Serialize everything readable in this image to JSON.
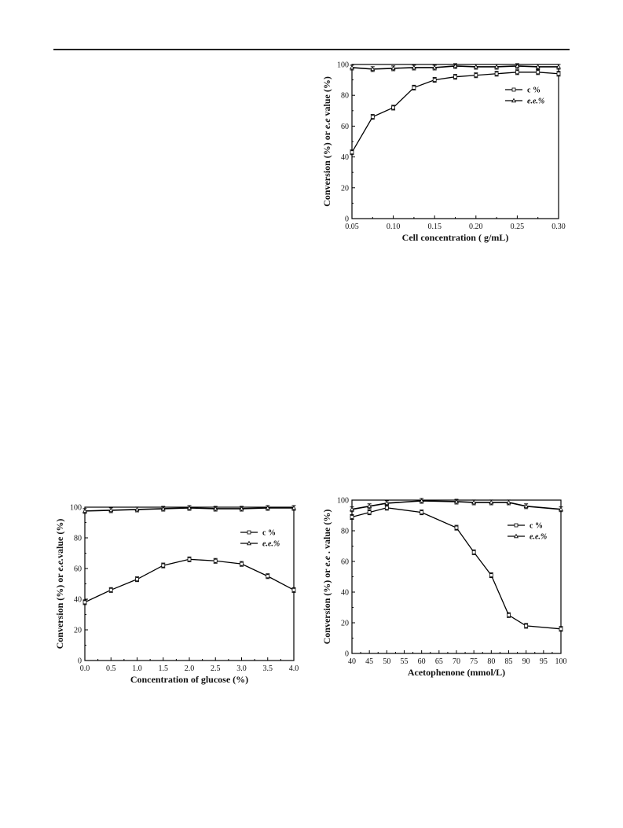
{
  "chart_data": [
    {
      "type": "line",
      "xlabel": "Cell concentration ( g/mL)",
      "ylabel_parts": [
        "Conversion (%) or ",
        "e.e",
        " value (%)"
      ],
      "xlim": [
        0.05,
        0.3
      ],
      "ylim": [
        0,
        100
      ],
      "xticks": [
        "0.05",
        "0.10",
        "0.15",
        "0.20",
        "0.25",
        "0.30"
      ],
      "xtick_values": [
        0.05,
        0.1,
        0.15,
        0.2,
        0.25,
        0.3
      ],
      "yticks": [
        "0",
        "20",
        "40",
        "60",
        "80",
        "100"
      ],
      "ytick_values": [
        0,
        20,
        40,
        60,
        80,
        100
      ],
      "legend_position": "top-right",
      "legend": [
        {
          "prefix": "",
          "label": "c %",
          "italic": false
        },
        {
          "prefix": "",
          "label": "e.e.%",
          "italic": true
        }
      ],
      "series": [
        {
          "name": "c %",
          "marker": "square",
          "x": [
            0.05,
            0.075,
            0.1,
            0.125,
            0.15,
            0.175,
            0.2,
            0.225,
            0.25,
            0.275,
            0.3
          ],
          "values": [
            43,
            66,
            72,
            85,
            90,
            92,
            93,
            94,
            95,
            95,
            94
          ]
        },
        {
          "name": "e.e.%",
          "marker": "triangle",
          "x": [
            0.05,
            0.075,
            0.1,
            0.125,
            0.15,
            0.175,
            0.2,
            0.225,
            0.25,
            0.275,
            0.3
          ],
          "values": [
            98,
            97,
            97.5,
            98,
            98,
            99,
            98.5,
            98.5,
            99,
            98.5,
            98.5
          ]
        }
      ]
    },
    {
      "type": "line",
      "xlabel": "Concentration of glucose (%)",
      "ylabel_parts": [
        "Conversion (%) or ",
        "e.e.",
        "value (%)"
      ],
      "xlim": [
        0.0,
        4.0
      ],
      "ylim": [
        0,
        100
      ],
      "xticks": [
        "0.0",
        "0.5",
        "1.0",
        "1.5",
        "2.0",
        "2.5",
        "3.0",
        "3.5",
        "4.0"
      ],
      "xtick_values": [
        0.0,
        0.5,
        1.0,
        1.5,
        2.0,
        2.5,
        3.0,
        3.5,
        4.0
      ],
      "yticks": [
        "0",
        "20",
        "40",
        "60",
        "80",
        "100"
      ],
      "ytick_values": [
        0,
        20,
        40,
        60,
        80,
        100
      ],
      "legend_position": "top-right",
      "legend": [
        {
          "prefix": "",
          "label": "c %",
          "italic": false
        },
        {
          "prefix": "",
          "label": "e.e.%",
          "italic": true
        }
      ],
      "series": [
        {
          "name": "c %",
          "marker": "square",
          "x": [
            0.0,
            0.5,
            1.0,
            1.5,
            2.0,
            2.5,
            3.0,
            3.5,
            4.0
          ],
          "values": [
            38,
            46,
            53,
            62,
            66,
            65,
            63,
            55,
            46
          ]
        },
        {
          "name": "e.e.%",
          "marker": "triangle",
          "x": [
            0.0,
            0.5,
            1.0,
            1.5,
            2.0,
            2.5,
            3.0,
            3.5,
            4.0
          ],
          "values": [
            97.5,
            98,
            98.5,
            99,
            99.5,
            99,
            99,
            99.5,
            99.5
          ]
        }
      ]
    },
    {
      "type": "line",
      "xlabel": "Acetophenone (mmol/L)",
      "ylabel_parts": [
        "Conversion (%) or ",
        "e.e",
        " . value (%)"
      ],
      "xlim": [
        40,
        100
      ],
      "ylim": [
        0,
        100
      ],
      "xticks": [
        "40",
        "45",
        "50",
        "55",
        "60",
        "65",
        "70",
        "75",
        "80",
        "85",
        "90",
        "95",
        "100"
      ],
      "xtick_values": [
        40,
        45,
        50,
        55,
        60,
        65,
        70,
        75,
        80,
        85,
        90,
        95,
        100
      ],
      "yticks": [
        "0",
        "20",
        "40",
        "60",
        "80",
        "100"
      ],
      "ytick_values": [
        0,
        20,
        40,
        60,
        80,
        100
      ],
      "legend_position": "top-right",
      "legend": [
        {
          "prefix": "",
          "label": "c %",
          "italic": false
        },
        {
          "prefix": "",
          "label": "e.e.%",
          "italic": true
        }
      ],
      "series": [
        {
          "name": "c %",
          "marker": "square",
          "x": [
            40,
            45,
            50,
            60,
            70,
            75,
            80,
            85,
            90,
            100
          ],
          "values": [
            89,
            92,
            95,
            92,
            82,
            66,
            51,
            25,
            18,
            16
          ]
        },
        {
          "name": "e.e.%",
          "marker": "triangle",
          "x": [
            40,
            45,
            50,
            60,
            70,
            75,
            80,
            85,
            90,
            100
          ],
          "values": [
            94,
            96,
            98,
            99.5,
            99,
            98.5,
            98.5,
            98.5,
            96,
            94
          ]
        }
      ]
    }
  ]
}
